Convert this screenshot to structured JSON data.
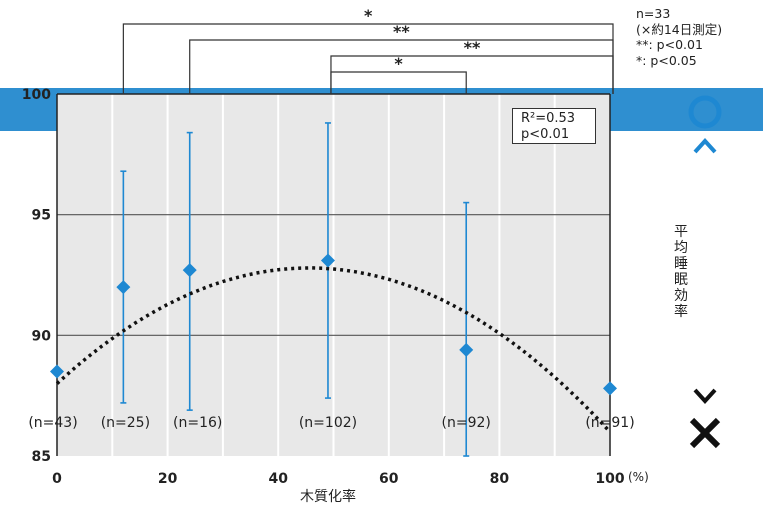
{
  "chart_data": {
    "type": "scatter",
    "xlabel": "木質化率",
    "x_unit": "(%)",
    "ylabel": "平均睡眠効率",
    "xlim": [
      0,
      100
    ],
    "ylim": [
      85,
      100
    ],
    "x_ticks": [
      "0",
      "20",
      "40",
      "60",
      "80",
      "100"
    ],
    "y_ticks": [
      "85",
      "90",
      "95",
      "100"
    ],
    "points": [
      {
        "x": 0,
        "y": 88.5,
        "err_low": null,
        "err_high": null,
        "n_label": "(n=43)"
      },
      {
        "x": 12,
        "y": 92.0,
        "err_low": 87.2,
        "err_high": 96.8,
        "n_label": "(n=25)"
      },
      {
        "x": 24,
        "y": 92.7,
        "err_low": 86.9,
        "err_high": 98.4,
        "n_label": "(n=16)"
      },
      {
        "x": 49,
        "y": 93.1,
        "err_low": 87.4,
        "err_high": 98.8,
        "n_label": "(n=102)"
      },
      {
        "x": 74,
        "y": 89.4,
        "err_low": 85.0,
        "err_high": 95.5,
        "n_label": "(n=92)"
      },
      {
        "x": 100,
        "y": 87.8,
        "err_low": null,
        "err_high": null,
        "n_label": "(n=91)"
      }
    ],
    "trend": {
      "type": "quadratic",
      "a": -0.0023,
      "b": 0.21,
      "c": 88.0
    },
    "fit_box": [
      "R²=0.53",
      "p<0.01"
    ],
    "significance": [
      {
        "from_x": 12,
        "to_x": 100,
        "label": "*"
      },
      {
        "from_x": 24,
        "to_x": 100,
        "label": "**"
      },
      {
        "from_x": 49,
        "to_x": 100,
        "label": "**"
      },
      {
        "from_x": 49,
        "to_x": 74,
        "label": "*"
      }
    ],
    "grid": true
  },
  "stats_note": [
    "n=33",
    "(×約14日測定)",
    "**: p<0.01",
    "*: p<0.05"
  ],
  "y_axis_good_symbol": "○",
  "y_axis_bad_symbol": "✕",
  "colors": {
    "band": "#2f8fd0",
    "marker": "#1e88d2",
    "plot_bg": "#e8e8e8",
    "grid": "#ffffff"
  }
}
